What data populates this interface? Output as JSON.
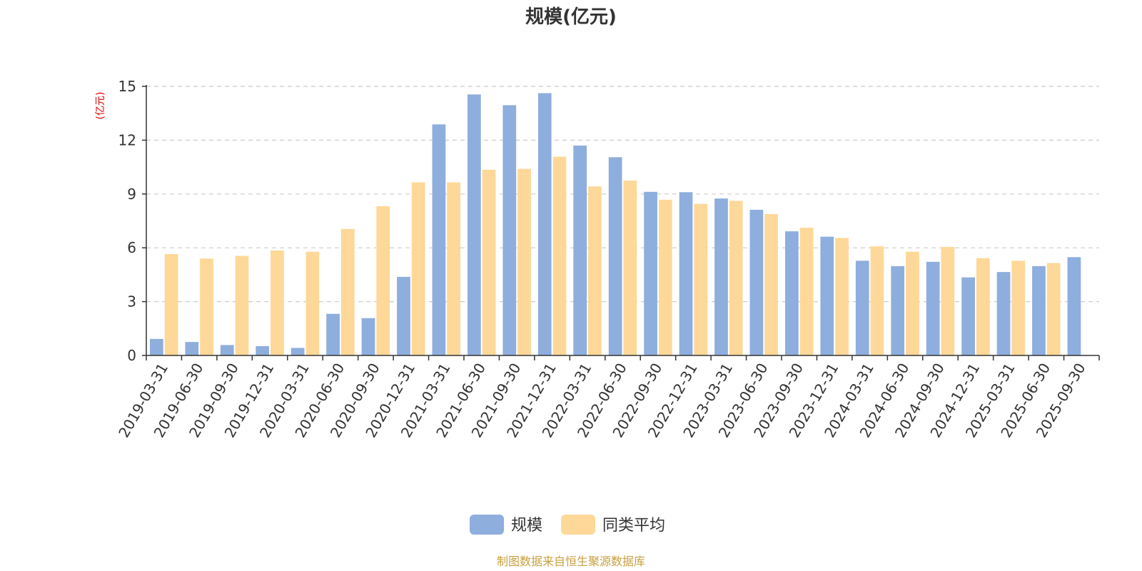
{
  "chart_data": {
    "type": "bar",
    "title": "规模(亿元)",
    "ylabel": "(亿元)",
    "xlabel": "",
    "ylim": [
      0,
      15
    ],
    "yticks": [
      0,
      3,
      6,
      9,
      12,
      15
    ],
    "grid": true,
    "legend_position": "bottom",
    "categories": [
      "2019-03-31",
      "2019-06-30",
      "2019-09-30",
      "2019-12-31",
      "2020-03-31",
      "2020-06-30",
      "2020-09-30",
      "2020-12-31",
      "2021-03-31",
      "2021-06-30",
      "2021-09-30",
      "2021-12-31",
      "2022-03-31",
      "2022-06-30",
      "2022-09-30",
      "2022-12-31",
      "2023-03-31",
      "2023-06-30",
      "2023-09-30",
      "2023-12-31",
      "2024-03-31",
      "2024-06-30",
      "2024-09-30",
      "2024-12-31",
      "2025-03-31",
      "2025-06-30",
      "2025-09-30"
    ],
    "series": [
      {
        "name": "规模",
        "color": "#8eaedd",
        "values": [
          0.92,
          0.75,
          0.58,
          0.52,
          0.42,
          2.32,
          2.08,
          4.38,
          12.88,
          14.55,
          13.95,
          14.62,
          11.7,
          11.05,
          9.12,
          9.1,
          8.75,
          8.12,
          6.92,
          6.62,
          5.28,
          4.98,
          5.22,
          4.35,
          4.65,
          4.98,
          5.48
        ]
      },
      {
        "name": "同类平均",
        "color": "#fed898",
        "values": [
          5.65,
          5.4,
          5.55,
          5.85,
          5.78,
          7.05,
          8.32,
          9.65,
          9.65,
          10.35,
          10.4,
          11.08,
          9.42,
          9.75,
          8.68,
          8.45,
          8.62,
          7.88,
          7.12,
          6.55,
          6.08,
          5.78,
          6.05,
          5.42,
          5.28,
          5.15,
          null
        ]
      }
    ]
  },
  "source_text": "制图数据来自恒生聚源数据库"
}
